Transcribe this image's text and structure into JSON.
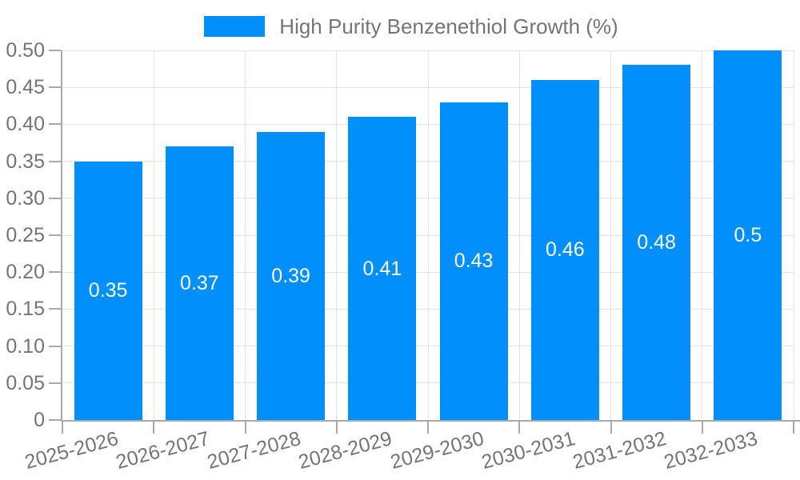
{
  "chart_data": {
    "type": "bar",
    "title": "",
    "legend_label": "High Purity Benzenethiol Growth (%)",
    "legend_position": "top-center",
    "grid": true,
    "categories": [
      "2025-2026",
      "2026-2027",
      "2027-2028",
      "2028-2029",
      "2029-2030",
      "2030-2031",
      "2031-2032",
      "2032-2033"
    ],
    "values": [
      0.35,
      0.37,
      0.39,
      0.41,
      0.43,
      0.46,
      0.48,
      0.5
    ],
    "value_labels": [
      "0.35",
      "0.37",
      "0.39",
      "0.41",
      "0.43",
      "0.46",
      "0.48",
      "0.5"
    ],
    "xlabel": "",
    "ylabel": "",
    "ylim": [
      0,
      0.5
    ],
    "ytick_step": 0.05,
    "ytick_labels": [
      "0",
      "0.05",
      "0.10",
      "0.15",
      "0.20",
      "0.25",
      "0.30",
      "0.35",
      "0.40",
      "0.45",
      "0.50"
    ],
    "colors": {
      "bar": "#008FFB",
      "value_label": "#ffffff",
      "axis": "#aaaaaa",
      "gridline": "#e4e4e4",
      "tick_label": "#757575",
      "legend_text": "#757575",
      "background": "#ffffff"
    }
  }
}
